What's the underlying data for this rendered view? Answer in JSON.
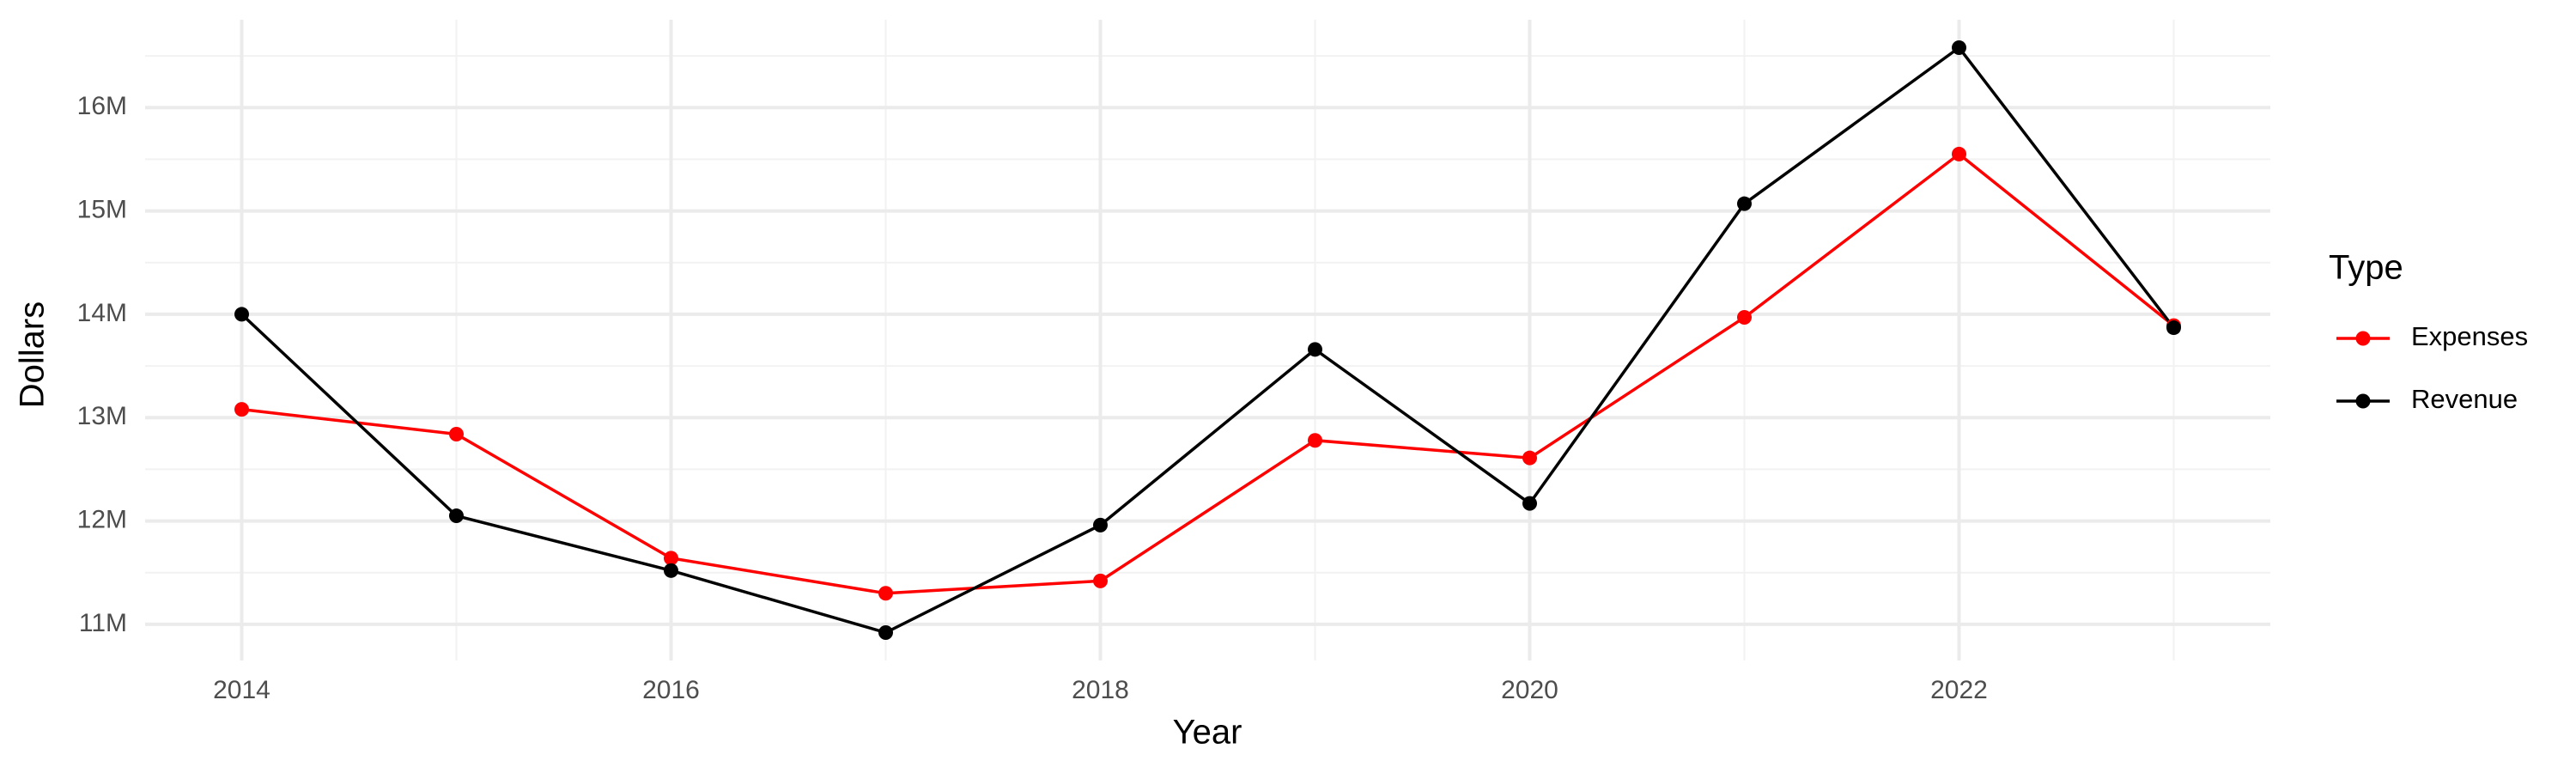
{
  "chart_data": {
    "type": "line",
    "x_label": "Year",
    "y_label": "Dollars",
    "legend_title": "Type",
    "legend_position": "right",
    "grid": true,
    "x": [
      2014,
      2015,
      2016,
      2017,
      2018,
      2019,
      2020,
      2021,
      2022,
      2023
    ],
    "series": [
      {
        "name": "Expenses",
        "color": "#ff0000",
        "values": [
          13080000,
          12840000,
          11640000,
          11300000,
          11420000,
          12780000,
          12610000,
          13970000,
          15550000,
          13890000
        ]
      },
      {
        "name": "Revenue",
        "color": "#000000",
        "values": [
          14000000,
          12050000,
          11520000,
          10920000,
          11960000,
          13660000,
          12170000,
          15070000,
          16580000,
          13870000
        ]
      }
    ],
    "xlim": [
      2013.55,
      2023.45
    ],
    "xticks": [
      2014,
      2016,
      2018,
      2020,
      2022
    ],
    "ylim": [
      10650000,
      16850000
    ],
    "yticks": [
      {
        "value": 11000000,
        "label": "11M"
      },
      {
        "value": 12000000,
        "label": "12M"
      },
      {
        "value": 13000000,
        "label": "13M"
      },
      {
        "value": 14000000,
        "label": "14M"
      },
      {
        "value": 15000000,
        "label": "15M"
      },
      {
        "value": 16000000,
        "label": "16M"
      }
    ]
  }
}
